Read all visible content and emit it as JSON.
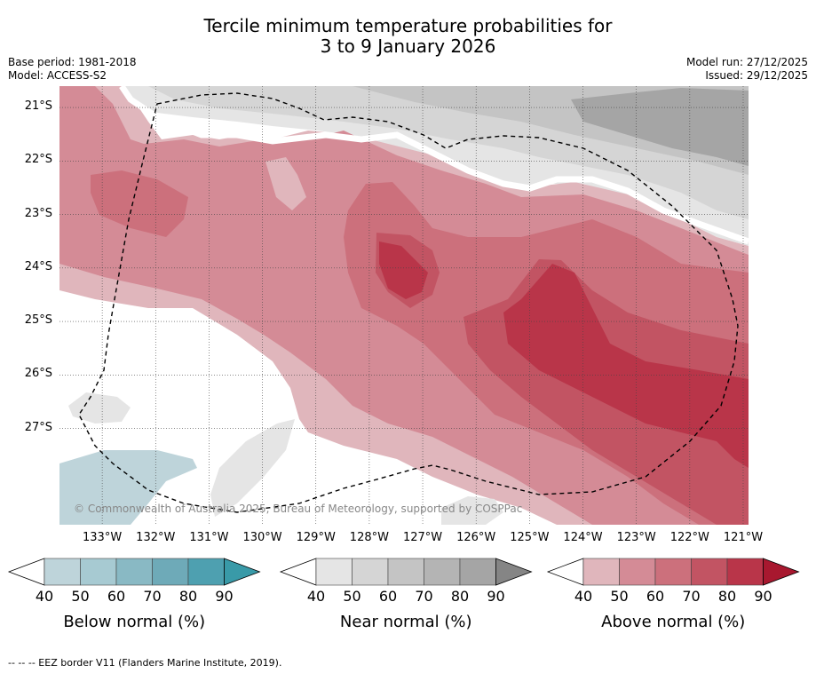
{
  "header": {
    "title_line1": "Tercile minimum temperature probabilities for",
    "title_line2": "3 to 9 January 2026",
    "base_period": "Base period: 1981-2018",
    "model": "Model: ACCESS-S2",
    "model_run": "Model run: 27/12/2025",
    "issued": "Issued: 29/12/2025"
  },
  "map": {
    "copyright": "© Commonwealth of Australia 2025, Bureau of Meteorology, supported by COSPPac",
    "lat_labels": [
      "21°S",
      "22°S",
      "23°S",
      "24°S",
      "25°S",
      "26°S",
      "27°S"
    ],
    "lon_labels": [
      "133°W",
      "132°W",
      "131°W",
      "130°W",
      "129°W",
      "128°W",
      "127°W",
      "126°W",
      "125°W",
      "124°W",
      "123°W",
      "122°W",
      "121°W"
    ],
    "latitudes": [
      21,
      22,
      23,
      24,
      25,
      26,
      27
    ],
    "longitudes": [
      133,
      132,
      131,
      130,
      129,
      128,
      127,
      126,
      125,
      124,
      123,
      122,
      121
    ],
    "bounds": {
      "lon_west": 133.8,
      "lon_east": 120.9,
      "lat_north": 20.6,
      "lat_south": 28.8
    }
  },
  "colorbars": [
    {
      "title": "Below normal (%)",
      "ticks": [
        "40",
        "50",
        "60",
        "70",
        "80",
        "90"
      ],
      "colors": [
        "#bed4da",
        "#a7cad2",
        "#89b9c4",
        "#6eaab8",
        "#4ea0b0"
      ],
      "low_color": "#ffffff",
      "high_color": "#399aa8"
    },
    {
      "title": "Near normal (%)",
      "ticks": [
        "40",
        "50",
        "60",
        "70",
        "80",
        "90"
      ],
      "colors": [
        "#e5e5e5",
        "#d5d5d5",
        "#c4c4c4",
        "#b4b4b4",
        "#a5a5a5"
      ],
      "low_color": "#ffffff",
      "high_color": "#858585"
    },
    {
      "title": "Above normal (%)",
      "ticks": [
        "40",
        "50",
        "60",
        "70",
        "80",
        "90"
      ],
      "colors": [
        "#e0b6bc",
        "#d48b96",
        "#cc707c",
        "#c25463",
        "#b93549"
      ],
      "low_color": "#ffffff",
      "high_color": "#a8182f"
    }
  ],
  "footnote": "--  --  -- EEZ border V11 (Flanders Marine Institute, 2019)."
}
